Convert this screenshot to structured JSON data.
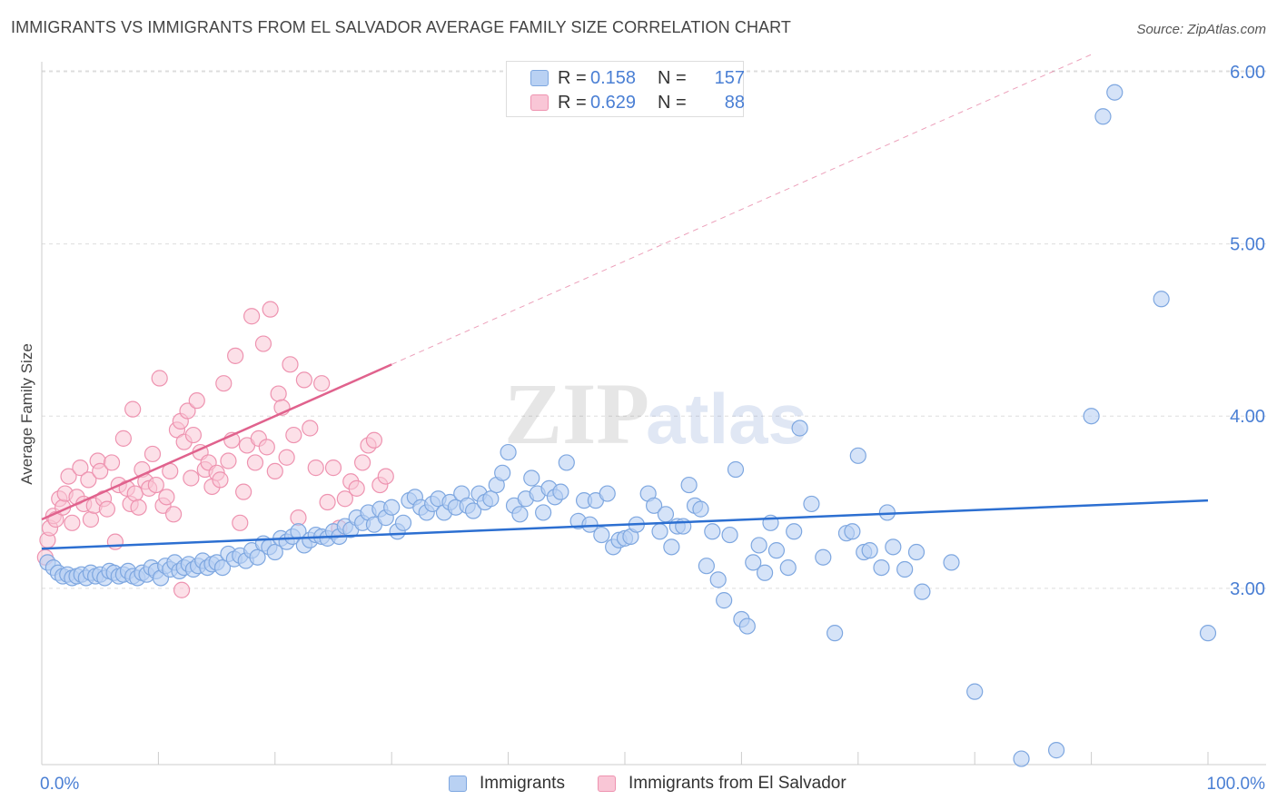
{
  "title": "IMMIGRANTS VS IMMIGRANTS FROM EL SALVADOR AVERAGE FAMILY SIZE CORRELATION CHART",
  "source": "Source: ZipAtlas.com",
  "watermark": {
    "zip": "ZIP",
    "atlas": "atlas"
  },
  "stats": {
    "immigrants": {
      "r_label": "R =",
      "r_value": "0.158",
      "n_label": "N =",
      "n_value": "157"
    },
    "el_salvador": {
      "r_label": "R =",
      "r_value": "0.629",
      "n_label": "N =",
      "n_value": "88"
    }
  },
  "legend": {
    "immigrants": "Immigrants",
    "el_salvador": "Immigrants from El Salvador"
  },
  "colors": {
    "blue_fill": "#b9d1f3",
    "blue_stroke": "#7ea7e0",
    "blue_line": "#2c6fd1",
    "pink_fill": "#f9c6d6",
    "pink_stroke": "#ee93b0",
    "pink_line": "#e0628d",
    "tick_label": "#4a7fd4",
    "grid": "#dddddd"
  },
  "chart_data": {
    "type": "scatter",
    "title": "IMMIGRANTS VS IMMIGRANTS FROM EL SALVADOR AVERAGE FAMILY SIZE CORRELATION CHART",
    "xlabel": "",
    "ylabel": "Average Family Size",
    "xlim": [
      0,
      100
    ],
    "ylim": [
      2.05,
      6.1
    ],
    "x_tick_labels": [
      "0.0%",
      "100.0%"
    ],
    "y_ticks": [
      3.0,
      4.0,
      5.0,
      6.0
    ],
    "y_tick_labels": [
      "3.00",
      "4.00",
      "5.00",
      "6.00"
    ],
    "grid": "horizontal dashed",
    "legend_position": "bottom-center",
    "series": [
      {
        "name": "Immigrants",
        "color": "#7ea7e0",
        "trend": {
          "x": [
            0,
            100
          ],
          "y": [
            3.23,
            3.51
          ]
        },
        "points": [
          [
            0.5,
            3.15
          ],
          [
            1,
            3.12
          ],
          [
            1.4,
            3.09
          ],
          [
            1.8,
            3.07
          ],
          [
            2.2,
            3.08
          ],
          [
            2.6,
            3.06
          ],
          [
            3,
            3.07
          ],
          [
            3.4,
            3.08
          ],
          [
            3.8,
            3.06
          ],
          [
            4.2,
            3.09
          ],
          [
            4.6,
            3.07
          ],
          [
            5,
            3.08
          ],
          [
            5.4,
            3.06
          ],
          [
            5.8,
            3.1
          ],
          [
            6.2,
            3.09
          ],
          [
            6.6,
            3.07
          ],
          [
            7,
            3.08
          ],
          [
            7.4,
            3.1
          ],
          [
            7.8,
            3.07
          ],
          [
            8.2,
            3.06
          ],
          [
            8.6,
            3.09
          ],
          [
            9,
            3.08
          ],
          [
            9.4,
            3.12
          ],
          [
            9.8,
            3.1
          ],
          [
            10.2,
            3.06
          ],
          [
            10.6,
            3.13
          ],
          [
            11,
            3.11
          ],
          [
            11.4,
            3.15
          ],
          [
            11.8,
            3.1
          ],
          [
            12.2,
            3.12
          ],
          [
            12.6,
            3.14
          ],
          [
            13,
            3.11
          ],
          [
            13.4,
            3.13
          ],
          [
            13.8,
            3.16
          ],
          [
            14.2,
            3.12
          ],
          [
            14.6,
            3.14
          ],
          [
            15,
            3.15
          ],
          [
            15.5,
            3.12
          ],
          [
            16,
            3.2
          ],
          [
            16.5,
            3.17
          ],
          [
            17,
            3.19
          ],
          [
            17.5,
            3.16
          ],
          [
            18,
            3.22
          ],
          [
            18.5,
            3.18
          ],
          [
            19,
            3.26
          ],
          [
            19.5,
            3.24
          ],
          [
            20,
            3.21
          ],
          [
            20.5,
            3.29
          ],
          [
            21,
            3.27
          ],
          [
            21.5,
            3.3
          ],
          [
            22,
            3.33
          ],
          [
            22.5,
            3.25
          ],
          [
            23,
            3.28
          ],
          [
            23.5,
            3.31
          ],
          [
            24,
            3.3
          ],
          [
            24.5,
            3.29
          ],
          [
            25,
            3.33
          ],
          [
            25.5,
            3.3
          ],
          [
            26,
            3.36
          ],
          [
            26.5,
            3.34
          ],
          [
            27,
            3.41
          ],
          [
            27.5,
            3.38
          ],
          [
            28,
            3.44
          ],
          [
            28.5,
            3.37
          ],
          [
            29,
            3.46
          ],
          [
            29.5,
            3.41
          ],
          [
            30,
            3.47
          ],
          [
            30.5,
            3.33
          ],
          [
            31,
            3.38
          ],
          [
            31.5,
            3.51
          ],
          [
            32,
            3.53
          ],
          [
            32.5,
            3.47
          ],
          [
            33,
            3.44
          ],
          [
            33.5,
            3.49
          ],
          [
            34,
            3.52
          ],
          [
            34.5,
            3.44
          ],
          [
            35,
            3.5
          ],
          [
            35.5,
            3.47
          ],
          [
            36,
            3.55
          ],
          [
            36.5,
            3.48
          ],
          [
            37,
            3.45
          ],
          [
            37.5,
            3.55
          ],
          [
            38,
            3.5
          ],
          [
            38.5,
            3.52
          ],
          [
            39,
            3.6
          ],
          [
            39.5,
            3.67
          ],
          [
            40,
            3.79
          ],
          [
            40.5,
            3.48
          ],
          [
            41,
            3.43
          ],
          [
            41.5,
            3.52
          ],
          [
            42,
            3.64
          ],
          [
            42.5,
            3.55
          ],
          [
            43,
            3.44
          ],
          [
            43.5,
            3.58
          ],
          [
            44,
            3.53
          ],
          [
            44.5,
            3.56
          ],
          [
            45,
            3.73
          ],
          [
            46,
            3.39
          ],
          [
            46.5,
            3.51
          ],
          [
            47,
            3.37
          ],
          [
            47.5,
            3.51
          ],
          [
            48,
            3.31
          ],
          [
            48.5,
            3.55
          ],
          [
            49,
            3.24
          ],
          [
            49.5,
            3.28
          ],
          [
            50,
            3.29
          ],
          [
            50.5,
            3.3
          ],
          [
            51,
            3.37
          ],
          [
            52,
            3.55
          ],
          [
            52.5,
            3.48
          ],
          [
            53,
            3.33
          ],
          [
            53.5,
            3.43
          ],
          [
            54,
            3.24
          ],
          [
            54.5,
            3.36
          ],
          [
            55,
            3.36
          ],
          [
            55.5,
            3.6
          ],
          [
            56,
            3.48
          ],
          [
            56.5,
            3.46
          ],
          [
            57,
            3.13
          ],
          [
            57.5,
            3.33
          ],
          [
            58,
            3.05
          ],
          [
            58.5,
            2.93
          ],
          [
            59,
            3.31
          ],
          [
            59.5,
            3.69
          ],
          [
            60,
            2.82
          ],
          [
            60.5,
            2.78
          ],
          [
            61,
            3.15
          ],
          [
            61.5,
            3.25
          ],
          [
            62,
            3.09
          ],
          [
            62.5,
            3.38
          ],
          [
            63,
            3.22
          ],
          [
            64,
            3.12
          ],
          [
            64.5,
            3.33
          ],
          [
            65,
            3.93
          ],
          [
            66,
            3.49
          ],
          [
            67,
            3.18
          ],
          [
            68,
            2.74
          ],
          [
            69,
            3.32
          ],
          [
            69.5,
            3.33
          ],
          [
            70,
            3.77
          ],
          [
            70.5,
            3.21
          ],
          [
            71,
            3.22
          ],
          [
            72,
            3.12
          ],
          [
            72.5,
            3.44
          ],
          [
            73,
            3.24
          ],
          [
            74,
            3.11
          ],
          [
            75,
            3.21
          ],
          [
            75.5,
            2.98
          ],
          [
            78,
            3.15
          ],
          [
            80,
            2.4
          ],
          [
            84,
            2.01
          ],
          [
            87,
            2.06
          ],
          [
            90,
            4.0
          ],
          [
            91,
            5.74
          ],
          [
            92,
            5.88
          ],
          [
            96,
            4.68
          ],
          [
            100,
            2.74
          ]
        ]
      },
      {
        "name": "Immigrants from El Salvador",
        "color": "#ee93b0",
        "trend": {
          "x": [
            0,
            30
          ],
          "y": [
            3.4,
            4.3
          ]
        },
        "points": [
          [
            0.3,
            3.18
          ],
          [
            0.5,
            3.28
          ],
          [
            0.7,
            3.35
          ],
          [
            1,
            3.42
          ],
          [
            1.2,
            3.4
          ],
          [
            1.5,
            3.52
          ],
          [
            1.8,
            3.47
          ],
          [
            2,
            3.55
          ],
          [
            2.3,
            3.65
          ],
          [
            2.6,
            3.38
          ],
          [
            3,
            3.53
          ],
          [
            3.3,
            3.7
          ],
          [
            3.6,
            3.49
          ],
          [
            4,
            3.63
          ],
          [
            4.2,
            3.4
          ],
          [
            4.5,
            3.48
          ],
          [
            4.8,
            3.74
          ],
          [
            5,
            3.68
          ],
          [
            5.3,
            3.52
          ],
          [
            5.6,
            3.46
          ],
          [
            6,
            3.73
          ],
          [
            6.3,
            3.27
          ],
          [
            6.6,
            3.6
          ],
          [
            7,
            3.87
          ],
          [
            7.3,
            3.58
          ],
          [
            7.6,
            3.49
          ],
          [
            7.8,
            4.04
          ],
          [
            8,
            3.55
          ],
          [
            8.3,
            3.47
          ],
          [
            8.6,
            3.69
          ],
          [
            8.9,
            3.62
          ],
          [
            9.2,
            3.58
          ],
          [
            9.5,
            3.78
          ],
          [
            9.8,
            3.6
          ],
          [
            10.1,
            4.22
          ],
          [
            10.4,
            3.48
          ],
          [
            10.7,
            3.53
          ],
          [
            11,
            3.68
          ],
          [
            11.3,
            3.43
          ],
          [
            11.6,
            3.92
          ],
          [
            11.9,
            3.97
          ],
          [
            12.2,
            3.85
          ],
          [
            12.5,
            4.03
          ],
          [
            12.8,
            3.64
          ],
          [
            13,
            3.89
          ],
          [
            13.3,
            4.09
          ],
          [
            13.6,
            3.79
          ],
          [
            14,
            3.69
          ],
          [
            14.3,
            3.73
          ],
          [
            14.6,
            3.59
          ],
          [
            15,
            3.67
          ],
          [
            15.3,
            3.63
          ],
          [
            15.6,
            4.19
          ],
          [
            16,
            3.74
          ],
          [
            16.3,
            3.86
          ],
          [
            16.6,
            4.35
          ],
          [
            17,
            3.38
          ],
          [
            17.3,
            3.56
          ],
          [
            17.6,
            3.83
          ],
          [
            18,
            4.58
          ],
          [
            18.3,
            3.73
          ],
          [
            18.6,
            3.87
          ],
          [
            19,
            4.42
          ],
          [
            19.3,
            3.82
          ],
          [
            19.6,
            4.62
          ],
          [
            20,
            3.68
          ],
          [
            20.3,
            4.13
          ],
          [
            20.6,
            4.05
          ],
          [
            21,
            3.76
          ],
          [
            21.3,
            4.3
          ],
          [
            21.6,
            3.89
          ],
          [
            22,
            3.41
          ],
          [
            22.5,
            4.21
          ],
          [
            23,
            3.93
          ],
          [
            23.5,
            3.7
          ],
          [
            24,
            4.19
          ],
          [
            24.5,
            3.5
          ],
          [
            25,
            3.7
          ],
          [
            25.5,
            3.35
          ],
          [
            26,
            3.52
          ],
          [
            26.5,
            3.62
          ],
          [
            27,
            3.58
          ],
          [
            27.5,
            3.73
          ],
          [
            28,
            3.83
          ],
          [
            28.5,
            3.86
          ],
          [
            29,
            3.6
          ],
          [
            29.5,
            3.65
          ],
          [
            12,
            2.99
          ]
        ]
      }
    ]
  }
}
